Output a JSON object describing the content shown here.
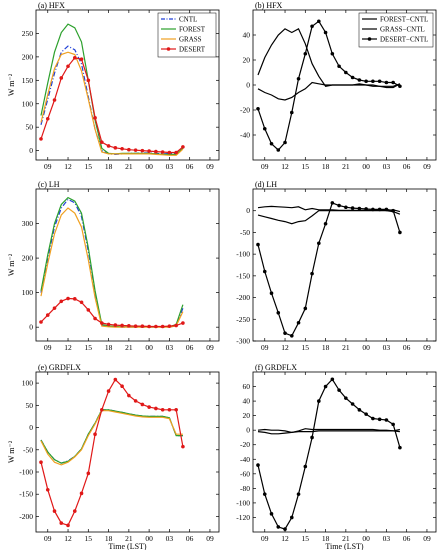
{
  "colors": {
    "CNTL": "#1f3fd6",
    "FOREST": "#2ca02c",
    "GRASS": "#f0a020",
    "DESERT": "#e01818",
    "FOREST-CNTL": "#2ca02c",
    "GRASS-CNTL": "#f0a020",
    "DESERT-CNTL": "#e01818"
  },
  "shared": {
    "x_tick_labels": [
      "09",
      "12",
      "15",
      "18",
      "21",
      "00",
      "03",
      "06",
      "09"
    ],
    "ylabel": "W m⁻²",
    "xlabel": "Time (LST)"
  },
  "chart_data": [
    {
      "panel": "a",
      "title": "(a)  HFX",
      "type": "line",
      "ylim": [
        -20,
        300
      ],
      "yticks": [
        0,
        50,
        100,
        150,
        200,
        250
      ],
      "show_ylabel": true,
      "legend": [
        "CNTL",
        "FOREST",
        "GRASS",
        "DESERT"
      ],
      "legend_position": "top-right",
      "series": [
        {
          "name": "CNTL",
          "style": "dashdot",
          "values": [
            55,
            110,
            165,
            210,
            223,
            215,
            185,
            115,
            45,
            0,
            -7,
            -8,
            -7,
            -6,
            -6,
            -5,
            -5,
            -6,
            -7,
            -6,
            -6,
            5
          ]
        },
        {
          "name": "FOREST",
          "style": "solid",
          "values": [
            75,
            145,
            210,
            252,
            270,
            262,
            232,
            150,
            65,
            5,
            -6,
            -7,
            -6,
            -6,
            -6,
            -6,
            -6,
            -7,
            -8,
            -8,
            -8,
            5
          ]
        },
        {
          "name": "GRASS",
          "style": "solid",
          "values": [
            60,
            120,
            175,
            205,
            210,
            205,
            170,
            110,
            45,
            -3,
            -7,
            -7,
            -7,
            -7,
            -7,
            -7,
            -7,
            -8,
            -9,
            -10,
            -10,
            3
          ]
        },
        {
          "name": "DESERT",
          "style": "marker",
          "values": [
            25,
            68,
            108,
            155,
            180,
            198,
            195,
            150,
            70,
            18,
            10,
            6,
            4,
            2,
            1,
            0,
            -1,
            -2,
            -3,
            -4,
            -4,
            8
          ]
        }
      ]
    },
    {
      "panel": "b",
      "title": "(b)  HFX",
      "type": "line",
      "ylim": [
        -60,
        60
      ],
      "yticks": [
        -40,
        -20,
        0,
        20,
        40
      ],
      "show_ylabel": false,
      "legend": [
        "FOREST−CNTL",
        "GRASS−CNTL",
        "DESERT−CNTL"
      ],
      "legend_position": "top-right",
      "series": [
        {
          "name": "FOREST−CNTL",
          "style": "solid",
          "values": [
            8,
            22,
            32,
            40,
            45,
            42,
            45,
            33,
            17,
            7,
            -1,
            0,
            0,
            0,
            0,
            0,
            0,
            0,
            -1,
            -1,
            -1,
            1
          ]
        },
        {
          "name": "GRASS−CNTL",
          "style": "solid",
          "values": [
            -3,
            -6,
            -8,
            -11,
            -12,
            -10,
            -6,
            -3,
            2,
            1,
            0,
            0,
            0,
            0,
            0,
            1,
            0,
            -1,
            -1,
            -2,
            -2,
            1
          ]
        },
        {
          "name": "DESERT−CNTL",
          "style": "marker",
          "values": [
            -19,
            -35,
            -47,
            -52,
            -46,
            -22,
            5,
            25,
            47,
            51,
            42,
            25,
            15,
            10,
            6,
            4,
            3,
            3,
            3,
            2,
            2,
            -1
          ]
        }
      ]
    },
    {
      "panel": "c",
      "title": "(c)  LH",
      "type": "line",
      "ylim": [
        -40,
        400
      ],
      "yticks": [
        0,
        100,
        200,
        300
      ],
      "show_ylabel": true,
      "series": [
        {
          "name": "CNTL",
          "style": "dashdot",
          "values": [
            100,
            200,
            290,
            345,
            370,
            360,
            320,
            220,
            100,
            5,
            2,
            1,
            0,
            0,
            0,
            0,
            0,
            0,
            0,
            0,
            5,
            55
          ]
        },
        {
          "name": "FOREST",
          "style": "solid",
          "values": [
            105,
            210,
            300,
            355,
            375,
            365,
            330,
            230,
            105,
            8,
            3,
            2,
            1,
            1,
            1,
            1,
            1,
            1,
            1,
            1,
            8,
            65
          ]
        },
        {
          "name": "GRASS",
          "style": "solid",
          "values": [
            90,
            185,
            270,
            325,
            345,
            330,
            290,
            195,
            85,
            3,
            1,
            0,
            0,
            0,
            0,
            0,
            0,
            0,
            0,
            0,
            4,
            45
          ]
        },
        {
          "name": "DESERT",
          "style": "marker",
          "values": [
            15,
            35,
            55,
            75,
            83,
            82,
            72,
            50,
            25,
            12,
            8,
            6,
            5,
            4,
            3,
            3,
            2,
            2,
            2,
            3,
            5,
            12
          ]
        }
      ]
    },
    {
      "panel": "d",
      "title": "(d)  LH",
      "type": "line",
      "ylim": [
        -300,
        50
      ],
      "yticks": [
        -300,
        -250,
        -200,
        -150,
        -100,
        -50,
        0
      ],
      "show_ylabel": false,
      "series": [
        {
          "name": "FOREST−CNTL",
          "style": "solid",
          "values": [
            7,
            9,
            10,
            9,
            8,
            7,
            9,
            2,
            5,
            2,
            2,
            2,
            1,
            1,
            1,
            1,
            1,
            1,
            1,
            1,
            2,
            -2
          ]
        },
        {
          "name": "GRASS−CNTL",
          "style": "solid",
          "values": [
            -10,
            -14,
            -18,
            -22,
            -25,
            -30,
            -25,
            -23,
            -12,
            0,
            0,
            0,
            0,
            0,
            0,
            0,
            0,
            0,
            0,
            0,
            -2,
            -8
          ]
        },
        {
          "name": "DESERT−CNTL",
          "style": "marker",
          "values": [
            -78,
            -140,
            -190,
            -235,
            -282,
            -288,
            -258,
            -225,
            -145,
            -75,
            -30,
            18,
            12,
            8,
            6,
            5,
            4,
            3,
            3,
            3,
            0,
            -50
          ]
        }
      ]
    },
    {
      "panel": "e",
      "title": "(e)  GRDFLX",
      "type": "line",
      "ylim": [
        -235,
        125
      ],
      "yticks": [
        -200,
        -150,
        -100,
        -50,
        0,
        50,
        100
      ],
      "show_ylabel": true,
      "series": [
        {
          "name": "CNTL",
          "style": "dashdot",
          "values": [
            -28,
            -55,
            -72,
            -80,
            -75,
            -65,
            -48,
            -15,
            10,
            40,
            40,
            37,
            34,
            31,
            28,
            26,
            25,
            25,
            25,
            22,
            -18,
            -18
          ]
        },
        {
          "name": "FOREST",
          "style": "solid",
          "values": [
            -28,
            -55,
            -72,
            -80,
            -76,
            -65,
            -48,
            -15,
            10,
            40,
            40,
            37,
            34,
            31,
            28,
            26,
            25,
            25,
            25,
            22,
            -18,
            -18
          ]
        },
        {
          "name": "GRASS",
          "style": "solid",
          "values": [
            -30,
            -60,
            -78,
            -84,
            -78,
            -66,
            -50,
            -18,
            8,
            38,
            38,
            35,
            32,
            29,
            26,
            24,
            23,
            23,
            23,
            20,
            -15,
            -15
          ]
        },
        {
          "name": "DESERT",
          "style": "marker",
          "values": [
            -78,
            -140,
            -188,
            -215,
            -220,
            -188,
            -148,
            -103,
            -15,
            40,
            82,
            108,
            93,
            72,
            60,
            52,
            46,
            43,
            40,
            40,
            40,
            -43
          ]
        }
      ]
    },
    {
      "panel": "f",
      "title": "(f)  GRDFLX",
      "type": "line",
      "ylim": [
        -140,
        80
      ],
      "yticks": [
        -120,
        -100,
        -80,
        -60,
        -40,
        -20,
        0,
        20,
        40,
        60
      ],
      "show_ylabel": false,
      "series": [
        {
          "name": "FOREST−CNTL",
          "style": "solid",
          "values": [
            0,
            1,
            0,
            0,
            -1,
            -3,
            -1,
            2,
            1,
            1,
            1,
            1,
            1,
            1,
            1,
            1,
            1,
            1,
            0,
            0,
            -1,
            1
          ]
        },
        {
          "name": "GRASS−CNTL",
          "style": "solid",
          "values": [
            -2,
            -3,
            -5,
            -5,
            -4,
            -3,
            -2,
            -2,
            -2,
            -1,
            -1,
            -1,
            -1,
            -1,
            -1,
            -1,
            -1,
            -1,
            -1,
            -1,
            -1,
            -2
          ]
        },
        {
          "name": "DESERT−CNTL",
          "style": "marker",
          "values": [
            -48,
            -88,
            -115,
            -133,
            -136,
            -120,
            -88,
            -50,
            -10,
            40,
            60,
            70,
            55,
            44,
            36,
            28,
            22,
            16,
            15,
            14,
            8,
            -24
          ]
        }
      ]
    }
  ]
}
